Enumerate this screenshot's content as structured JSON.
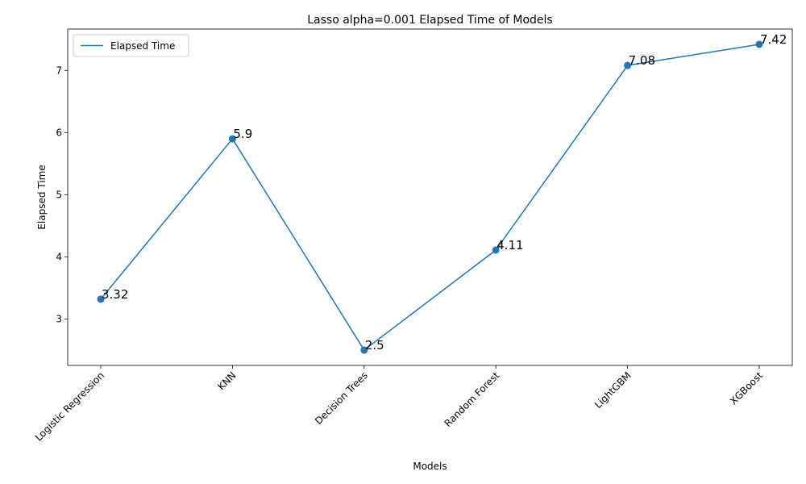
{
  "chart_data": {
    "type": "line",
    "title": "Lasso alpha=0.001 Elapsed Time of Models",
    "xlabel": "Models",
    "ylabel": "Elapsed Time",
    "categories": [
      "Logistic Regression",
      "KNN",
      "Decision Trees",
      "Random Forest",
      "LightGBM",
      "XGBoost"
    ],
    "series": [
      {
        "name": "Elapsed Time",
        "values": [
          3.32,
          5.9,
          2.5,
          4.11,
          7.08,
          7.42
        ],
        "color": "#1f77b4",
        "marker": "circle"
      }
    ],
    "data_labels": [
      "3.32",
      "5.9",
      "2.5",
      "4.11",
      "7.08",
      "7.42"
    ],
    "yticks": [
      3,
      4,
      5,
      6,
      7
    ],
    "ylim": [
      2.254,
      7.666
    ],
    "grid": false,
    "legend": "top-left"
  }
}
